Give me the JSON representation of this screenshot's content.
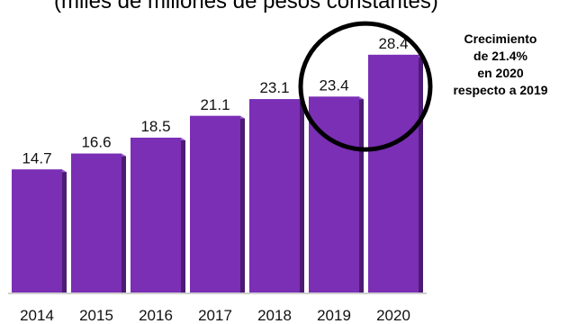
{
  "chart_data": {
    "type": "bar",
    "title": "(miles de millones de pesos constantes)",
    "categories": [
      "2014",
      "2015",
      "2016",
      "2017",
      "2018",
      "2019",
      "2020"
    ],
    "values": [
      14.7,
      16.6,
      18.5,
      21.1,
      23.1,
      23.4,
      28.4
    ],
    "value_labels": [
      "14.7",
      "16.6",
      "18.5",
      "21.1",
      "23.1",
      "23.4",
      "28.4"
    ],
    "ylim": [
      0,
      30
    ],
    "bar_color": "#7a2fb5",
    "bar_side_color": "#4c1b73",
    "highlight": {
      "categories": [
        "2019",
        "2020"
      ],
      "shape": "circle",
      "stroke_color": "#000000"
    },
    "annotation": {
      "lines": [
        "Crecimiento",
        "de 21.4%",
        "en 2020",
        "respecto a 2019"
      ]
    },
    "grid": false,
    "legend": "none"
  }
}
